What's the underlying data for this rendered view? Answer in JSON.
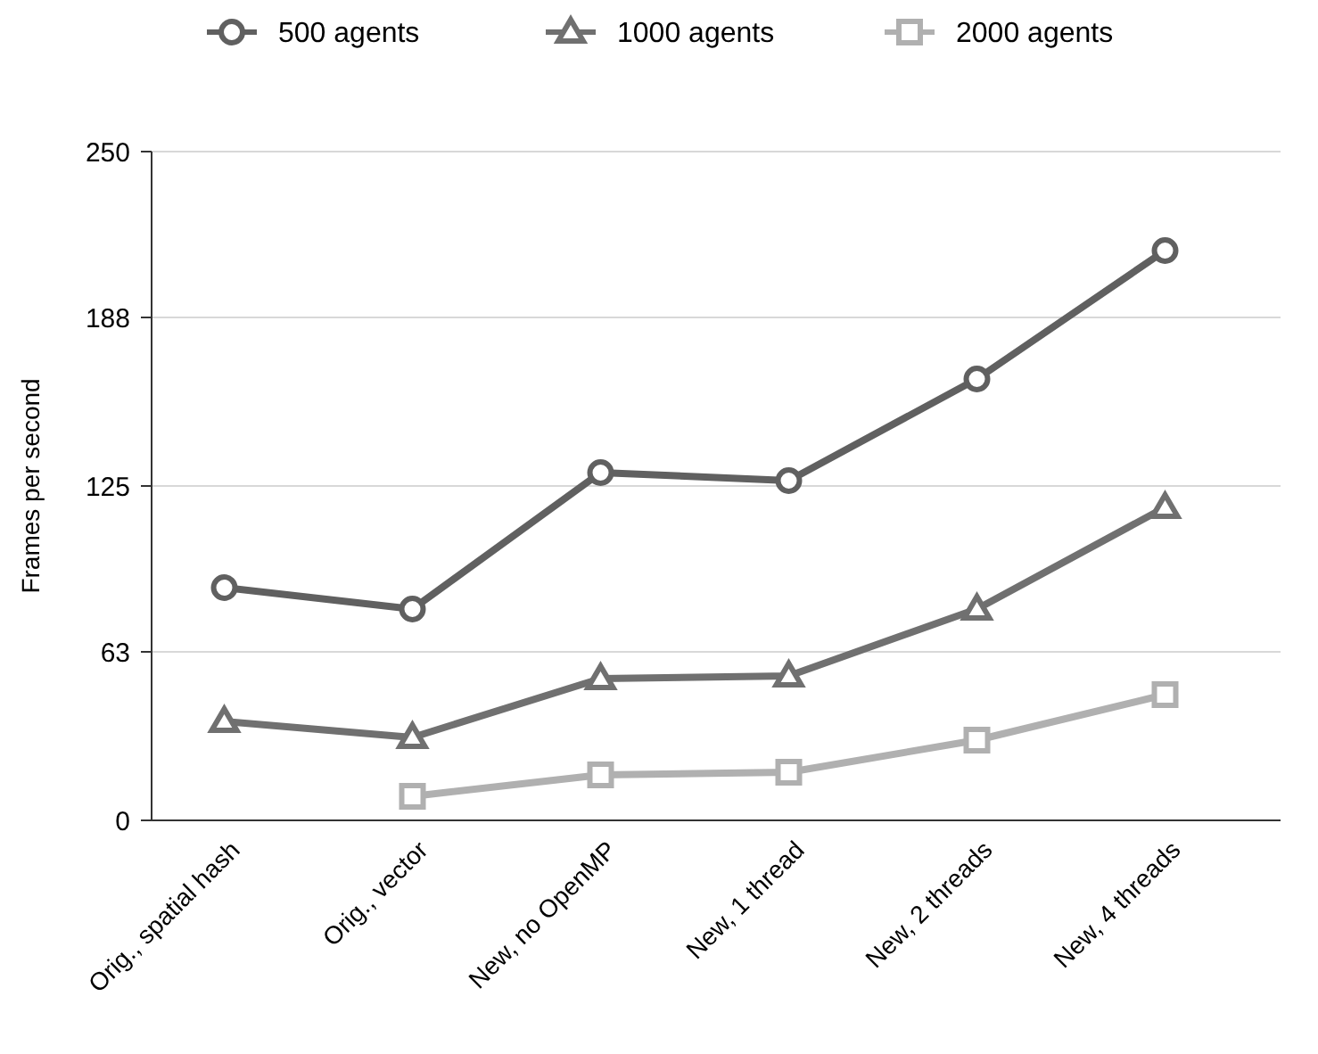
{
  "chart_data": {
    "type": "line",
    "ylabel": "Frames per second",
    "categories": [
      "Orig., spatial hash",
      "Orig., vector",
      "New, no OpenMP",
      "New, 1 thread",
      "New, 2 threads",
      "New, 4 threads"
    ],
    "series": [
      {
        "name": "500 agents",
        "color": "#606060",
        "marker": "circle",
        "values": [
          87,
          79,
          130,
          127,
          165,
          213
        ]
      },
      {
        "name": "1000 agents",
        "color": "#707070",
        "marker": "triangle",
        "values": [
          37,
          31,
          53,
          54,
          79,
          117
        ]
      },
      {
        "name": "2000 agents",
        "color": "#b0b0b0",
        "marker": "square",
        "values": [
          null,
          9,
          17,
          18,
          30,
          47
        ]
      }
    ],
    "ylim": [
      0,
      250
    ],
    "yticks": [
      0,
      63,
      125,
      188,
      250
    ],
    "grid": "y",
    "legend": "top",
    "line_style": "solid"
  }
}
